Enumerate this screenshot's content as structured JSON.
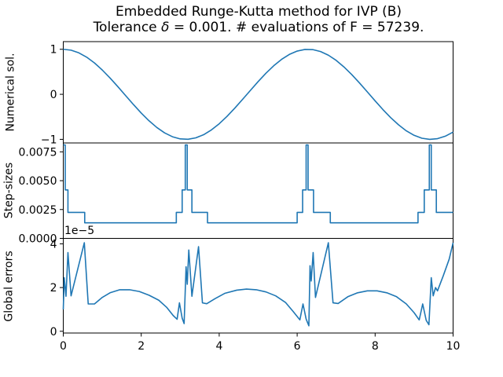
{
  "title": {
    "line1": "Embedded Runge-Kutta method for IVP (B)",
    "line2_prefix": "Tolerance ",
    "line2_delta": "δ",
    "line2_rest": " = 0.001. # evaluations of F = 57239."
  },
  "colors": {
    "line": "#1f77b4",
    "axis": "#000000",
    "background": "#ffffff",
    "text": "#000000"
  },
  "chart_data": [
    {
      "id": "numerical-solution",
      "type": "line",
      "ylabel": "Numerical sol.",
      "xlim": [
        0,
        10
      ],
      "ylim": [
        -1.08,
        1.17
      ],
      "yticks": [
        -1,
        0,
        1
      ],
      "ytick_labels": [
        "−1",
        "0",
        "1"
      ],
      "grid": false,
      "legend": null,
      "x": [
        0,
        0.2,
        0.4,
        0.6,
        0.8,
        1.0,
        1.2,
        1.4,
        1.6,
        1.8,
        2.0,
        2.2,
        2.4,
        2.6,
        2.8,
        3.0,
        3.2,
        3.4,
        3.6,
        3.8,
        4.0,
        4.2,
        4.4,
        4.6,
        4.8,
        5.0,
        5.2,
        5.4,
        5.6,
        5.8,
        6.0,
        6.2,
        6.4,
        6.6,
        6.8,
        7.0,
        7.2,
        7.4,
        7.6,
        7.8,
        8.0,
        8.2,
        8.4,
        8.6,
        8.8,
        9.0,
        9.2,
        9.4,
        9.6,
        9.8,
        10.0
      ],
      "y": [
        1.0,
        0.98,
        0.921,
        0.825,
        0.697,
        0.54,
        0.362,
        0.17,
        -0.029,
        -0.227,
        -0.416,
        -0.588,
        -0.737,
        -0.857,
        -0.942,
        -0.99,
        -0.998,
        -0.967,
        -0.897,
        -0.791,
        -0.654,
        -0.49,
        -0.307,
        -0.112,
        0.087,
        0.284,
        0.469,
        0.635,
        0.776,
        0.886,
        0.96,
        0.997,
        0.993,
        0.95,
        0.869,
        0.754,
        0.608,
        0.439,
        0.251,
        0.054,
        -0.146,
        -0.339,
        -0.519,
        -0.677,
        -0.811,
        -0.911,
        -0.975,
        -1.0,
        -0.985,
        -0.93,
        -0.839
      ]
    },
    {
      "id": "step-sizes",
      "type": "line",
      "ylabel": "Step-sizes",
      "xlim": [
        0,
        10
      ],
      "ylim": [
        0,
        0.00827
      ],
      "yticks": [
        0,
        0.0025,
        0.005,
        0.0075
      ],
      "ytick_labels": [
        "0.0000",
        "0.0025",
        "0.0050",
        "0.0075"
      ],
      "grid": false,
      "legend": null,
      "points": [
        [
          0,
          0.0081
        ],
        [
          0.05,
          0.0081
        ],
        [
          0.05,
          0.0042
        ],
        [
          0.12,
          0.0042
        ],
        [
          0.12,
          0.00225
        ],
        [
          0.55,
          0.00225
        ],
        [
          0.55,
          0.00135
        ],
        [
          2.9,
          0.00135
        ],
        [
          2.9,
          0.00225
        ],
        [
          3.05,
          0.00225
        ],
        [
          3.05,
          0.0042
        ],
        [
          3.13,
          0.0042
        ],
        [
          3.13,
          0.0081
        ],
        [
          3.18,
          0.0081
        ],
        [
          3.18,
          0.0042
        ],
        [
          3.3,
          0.0042
        ],
        [
          3.3,
          0.00225
        ],
        [
          3.7,
          0.00225
        ],
        [
          3.7,
          0.00135
        ],
        [
          6.0,
          0.00135
        ],
        [
          6.0,
          0.00225
        ],
        [
          6.14,
          0.00225
        ],
        [
          6.14,
          0.0042
        ],
        [
          6.23,
          0.0042
        ],
        [
          6.23,
          0.0081
        ],
        [
          6.28,
          0.0081
        ],
        [
          6.28,
          0.0042
        ],
        [
          6.42,
          0.0042
        ],
        [
          6.42,
          0.00225
        ],
        [
          6.85,
          0.00225
        ],
        [
          6.85,
          0.00135
        ],
        [
          9.1,
          0.00135
        ],
        [
          9.1,
          0.00225
        ],
        [
          9.26,
          0.00225
        ],
        [
          9.26,
          0.0042
        ],
        [
          9.39,
          0.0042
        ],
        [
          9.39,
          0.0081
        ],
        [
          9.44,
          0.0081
        ],
        [
          9.44,
          0.0042
        ],
        [
          9.57,
          0.0042
        ],
        [
          9.57,
          0.00225
        ],
        [
          10,
          0.00225
        ]
      ]
    },
    {
      "id": "global-errors",
      "type": "line",
      "ylabel": "Global errors",
      "offset_label": "1e−5",
      "xlim": [
        0,
        10
      ],
      "ylim": [
        -0.08,
        4.25
      ],
      "yticks": [
        0,
        2,
        4
      ],
      "ytick_labels": [
        "0",
        "2",
        "4"
      ],
      "xticks": [
        0,
        2,
        4,
        6,
        8,
        10
      ],
      "xtick_labels": [
        "0",
        "2",
        "4",
        "6",
        "8",
        "10"
      ],
      "grid": false,
      "legend": null,
      "value_scale": "1e-5",
      "points": [
        [
          0,
          1.0
        ],
        [
          0.025,
          2.45
        ],
        [
          0.07,
          1.6
        ],
        [
          0.12,
          3.6
        ],
        [
          0.2,
          1.62
        ],
        [
          0.54,
          4.05
        ],
        [
          0.64,
          1.25
        ],
        [
          0.8,
          1.25
        ],
        [
          1.0,
          1.55
        ],
        [
          1.2,
          1.76
        ],
        [
          1.45,
          1.9
        ],
        [
          1.7,
          1.9
        ],
        [
          1.95,
          1.82
        ],
        [
          2.2,
          1.65
        ],
        [
          2.45,
          1.42
        ],
        [
          2.65,
          1.1
        ],
        [
          2.82,
          0.72
        ],
        [
          2.92,
          0.55
        ],
        [
          2.98,
          1.3
        ],
        [
          3.05,
          0.6
        ],
        [
          3.1,
          0.35
        ],
        [
          3.15,
          2.95
        ],
        [
          3.18,
          2.15
        ],
        [
          3.22,
          3.72
        ],
        [
          3.3,
          1.6
        ],
        [
          3.47,
          3.87
        ],
        [
          3.57,
          1.3
        ],
        [
          3.68,
          1.26
        ],
        [
          3.9,
          1.5
        ],
        [
          4.15,
          1.74
        ],
        [
          4.45,
          1.88
        ],
        [
          4.7,
          1.93
        ],
        [
          4.95,
          1.9
        ],
        [
          5.2,
          1.8
        ],
        [
          5.45,
          1.62
        ],
        [
          5.7,
          1.32
        ],
        [
          5.9,
          0.9
        ],
        [
          6.07,
          0.52
        ],
        [
          6.15,
          1.25
        ],
        [
          6.23,
          0.56
        ],
        [
          6.3,
          0.25
        ],
        [
          6.33,
          3.0
        ],
        [
          6.36,
          2.3
        ],
        [
          6.41,
          3.6
        ],
        [
          6.47,
          1.55
        ],
        [
          6.8,
          4.05
        ],
        [
          6.92,
          1.3
        ],
        [
          7.05,
          1.27
        ],
        [
          7.3,
          1.58
        ],
        [
          7.55,
          1.76
        ],
        [
          7.8,
          1.85
        ],
        [
          8.05,
          1.85
        ],
        [
          8.3,
          1.76
        ],
        [
          8.55,
          1.58
        ],
        [
          8.8,
          1.25
        ],
        [
          9.0,
          0.85
        ],
        [
          9.13,
          0.52
        ],
        [
          9.22,
          1.25
        ],
        [
          9.31,
          0.5
        ],
        [
          9.38,
          0.3
        ],
        [
          9.44,
          2.45
        ],
        [
          9.49,
          1.62
        ],
        [
          9.55,
          2.0
        ],
        [
          9.6,
          1.85
        ],
        [
          9.75,
          2.55
        ],
        [
          9.9,
          3.3
        ],
        [
          10,
          4.05
        ]
      ]
    }
  ]
}
